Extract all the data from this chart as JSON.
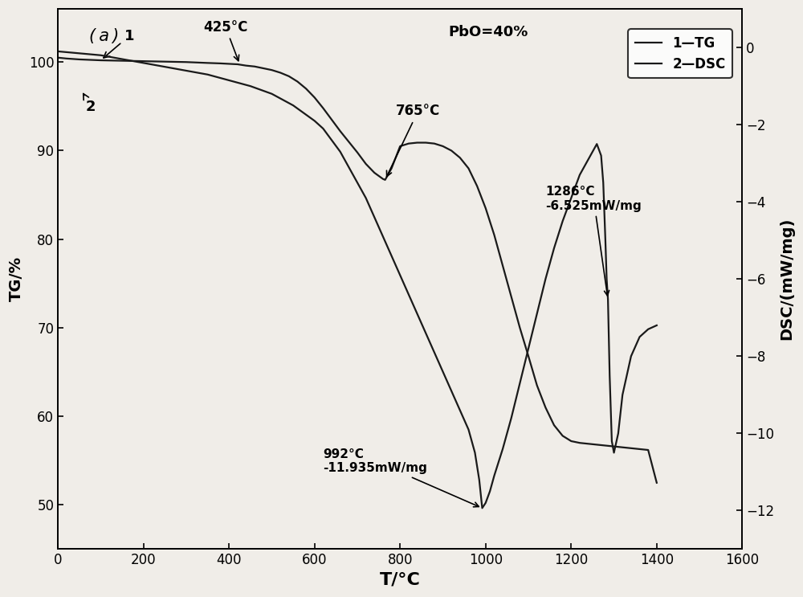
{
  "title_label": "(a)",
  "xlabel": "T/°C",
  "ylabel_left": "TG/%",
  "ylabel_right": "DSC/(mW/mg)",
  "pbo_label": "PbO=40%",
  "xlim": [
    0,
    1600
  ],
  "ylim_left": [
    45,
    106
  ],
  "ylim_right": [
    -13,
    1
  ],
  "yticks_left": [
    50,
    60,
    70,
    80,
    90,
    100
  ],
  "yticks_right": [
    0,
    -2,
    -4,
    -6,
    -8,
    -10,
    -12
  ],
  "xticks": [
    0,
    200,
    400,
    600,
    800,
    1000,
    1200,
    1400,
    1600
  ],
  "tg_color": "#1a1a1a",
  "dsc_color": "#1a1a1a",
  "bg_color": "#f0ede8",
  "tg_x": [
    0,
    20,
    50,
    100,
    150,
    200,
    250,
    300,
    350,
    380,
    400,
    420,
    440,
    460,
    480,
    500,
    520,
    540,
    560,
    580,
    600,
    620,
    640,
    660,
    680,
    700,
    720,
    740,
    760,
    765,
    780,
    800,
    820,
    840,
    860,
    880,
    900,
    920,
    940,
    960,
    980,
    1000,
    1020,
    1040,
    1060,
    1080,
    1100,
    1120,
    1140,
    1160,
    1180,
    1200,
    1220,
    1240,
    1260,
    1280,
    1300,
    1320,
    1340,
    1360,
    1380,
    1400
  ],
  "tg_y": [
    100.5,
    100.4,
    100.3,
    100.2,
    100.15,
    100.1,
    100.05,
    100.0,
    99.9,
    99.85,
    99.8,
    99.75,
    99.6,
    99.5,
    99.3,
    99.1,
    98.8,
    98.4,
    97.8,
    97.0,
    96.0,
    94.8,
    93.5,
    92.2,
    91.0,
    89.8,
    88.5,
    87.5,
    86.8,
    86.7,
    88.0,
    90.5,
    90.8,
    90.9,
    90.9,
    90.8,
    90.5,
    90.0,
    89.2,
    88.0,
    86.0,
    83.5,
    80.5,
    77.0,
    73.5,
    70.0,
    66.8,
    63.5,
    61.0,
    59.0,
    57.8,
    57.2,
    57.0,
    56.9,
    56.8,
    56.7,
    56.6,
    56.5,
    56.4,
    56.3,
    56.2,
    52.5
  ],
  "dsc_x": [
    0,
    50,
    100,
    150,
    200,
    250,
    300,
    350,
    400,
    450,
    500,
    550,
    600,
    620,
    640,
    660,
    680,
    700,
    720,
    740,
    760,
    780,
    800,
    820,
    840,
    860,
    880,
    900,
    920,
    940,
    960,
    975,
    985,
    992,
    1000,
    1010,
    1020,
    1040,
    1060,
    1080,
    1100,
    1120,
    1140,
    1160,
    1180,
    1200,
    1220,
    1240,
    1260,
    1270,
    1275,
    1280,
    1283,
    1286,
    1290,
    1295,
    1300,
    1310,
    1320,
    1340,
    1360,
    1380,
    1400
  ],
  "dsc_y": [
    -0.1,
    -0.15,
    -0.2,
    -0.3,
    -0.4,
    -0.5,
    -0.6,
    -0.7,
    -0.85,
    -1.0,
    -1.2,
    -1.5,
    -1.9,
    -2.1,
    -2.4,
    -2.7,
    -3.1,
    -3.5,
    -3.9,
    -4.4,
    -4.9,
    -5.4,
    -5.9,
    -6.4,
    -6.9,
    -7.4,
    -7.9,
    -8.4,
    -8.9,
    -9.4,
    -9.9,
    -10.5,
    -11.2,
    -11.935,
    -11.8,
    -11.5,
    -11.1,
    -10.4,
    -9.6,
    -8.7,
    -7.8,
    -6.9,
    -6.0,
    -5.2,
    -4.5,
    -3.9,
    -3.3,
    -2.9,
    -2.5,
    -2.8,
    -3.5,
    -5.0,
    -6.0,
    -6.525,
    -8.5,
    -10.2,
    -10.5,
    -10.0,
    -9.0,
    -8.0,
    -7.5,
    -7.3,
    -7.2
  ]
}
